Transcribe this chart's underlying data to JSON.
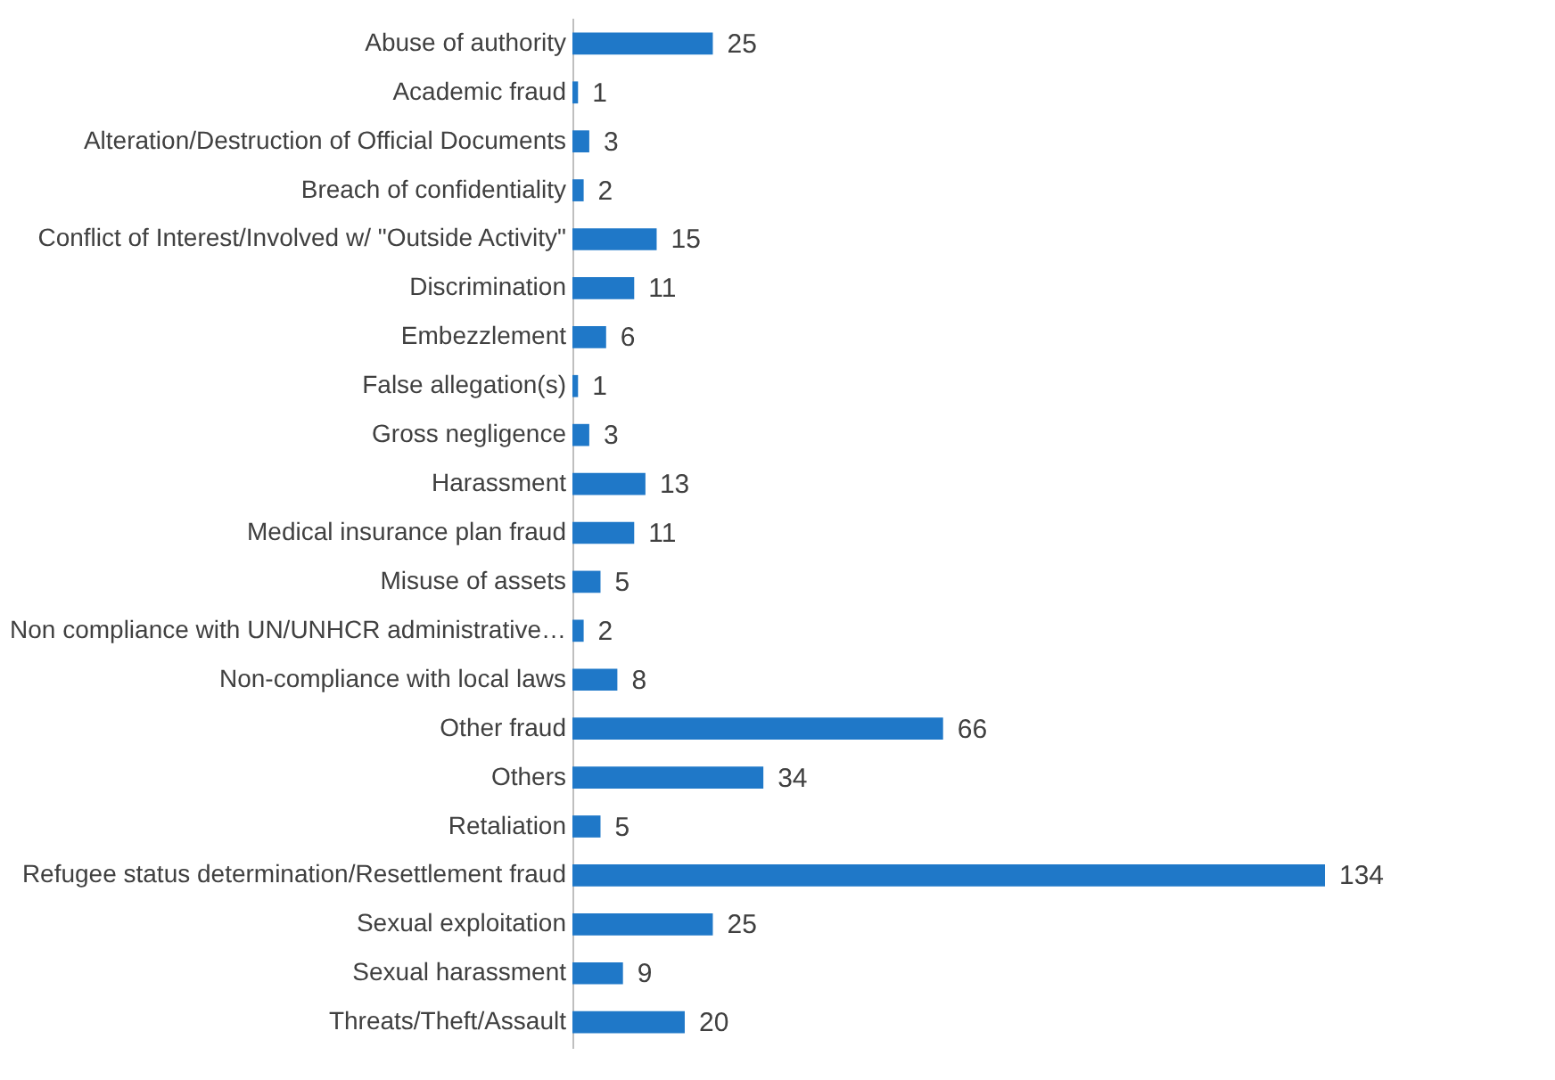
{
  "chart_data": {
    "type": "bar",
    "orientation": "horizontal",
    "data_labels": true,
    "color": "#1f78c8",
    "categories": [
      "Abuse of authority",
      "Academic fraud",
      "Alteration/Destruction of Official Documents",
      "Breach of confidentiality",
      "Conflict of Interest/Involved w/ \"Outside Activity\"",
      "Discrimination",
      "Embezzlement",
      "False allegation(s)",
      "Gross negligence",
      "Harassment",
      "Medical insurance plan fraud",
      "Misuse of assets",
      "Non compliance with UN/UNHCR administrative…",
      "Non-compliance with local laws",
      "Other fraud",
      "Others",
      "Retaliation",
      "Refugee status determination/Resettlement fraud",
      "Sexual exploitation",
      "Sexual harassment",
      "Threats/Theft/Assault"
    ],
    "values": [
      25,
      1,
      3,
      2,
      15,
      11,
      6,
      1,
      3,
      13,
      11,
      5,
      2,
      8,
      66,
      34,
      5,
      134,
      25,
      9,
      20
    ]
  }
}
